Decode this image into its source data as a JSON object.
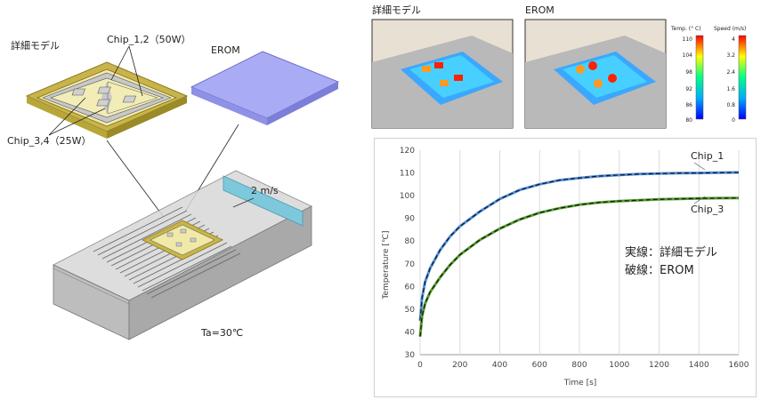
{
  "diagram": {
    "detail_model_label": "詳細モデル",
    "erom_label": "EROM",
    "chip12_label": "Chip_1,2（50W）",
    "chip34_label": "Chip_3,4（25W）",
    "airflow_label": "2 m/s",
    "ambient_label": "Ta=30℃"
  },
  "snapshots": {
    "detail_title": "詳細モデル",
    "erom_title": "EROM",
    "temp_legend": {
      "title": "Temp. (° C)",
      "ticks": [
        "110",
        "104",
        "98",
        "92",
        "86",
        "80"
      ],
      "colors": [
        "#ff0000",
        "#ffff00",
        "#00ff88",
        "#00aaff",
        "#0000ff"
      ]
    },
    "speed_legend": {
      "title": "Speed (m/s)",
      "ticks": [
        "4",
        "3.2",
        "2.4",
        "1.6",
        "0.8",
        "0"
      ],
      "colors": [
        "#ff0000",
        "#ffff00",
        "#00ff88",
        "#00aaff",
        "#0000ff"
      ]
    }
  },
  "chart_data": {
    "type": "line",
    "xlabel": "Time [s]",
    "ylabel": "Temperature [℃]",
    "xlim": [
      0,
      1600
    ],
    "ylim": [
      30,
      120
    ],
    "xticks": [
      0,
      200,
      400,
      600,
      800,
      1000,
      1200,
      1400,
      1600
    ],
    "yticks": [
      30,
      40,
      50,
      60,
      70,
      80,
      90,
      100,
      110,
      120
    ],
    "grid": "vertical",
    "legend_text": [
      "実線：詳細モデル",
      "破線：EROM"
    ],
    "x": [
      0,
      10,
      25,
      50,
      100,
      150,
      200,
      300,
      400,
      500,
      600,
      700,
      800,
      900,
      1000,
      1100,
      1200,
      1300,
      1400,
      1500,
      1600
    ],
    "series": [
      {
        "name": "Chip_1",
        "color": "#4f8fe0",
        "values": [
          45,
          55,
          62,
          68,
          76,
          82,
          86.5,
          93,
          98.5,
          102.5,
          105,
          106.8,
          107.8,
          108.6,
          109.1,
          109.5,
          109.7,
          109.9,
          110,
          110.1,
          110.2
        ]
      },
      {
        "name": "Chip_3",
        "color": "#55a030",
        "values": [
          38,
          47,
          52.5,
          57.5,
          64,
          69.5,
          74,
          80.5,
          85.5,
          89.5,
          92.5,
          94.5,
          96,
          97,
          97.6,
          98,
          98.4,
          98.6,
          98.8,
          98.9,
          99
        ]
      }
    ]
  }
}
